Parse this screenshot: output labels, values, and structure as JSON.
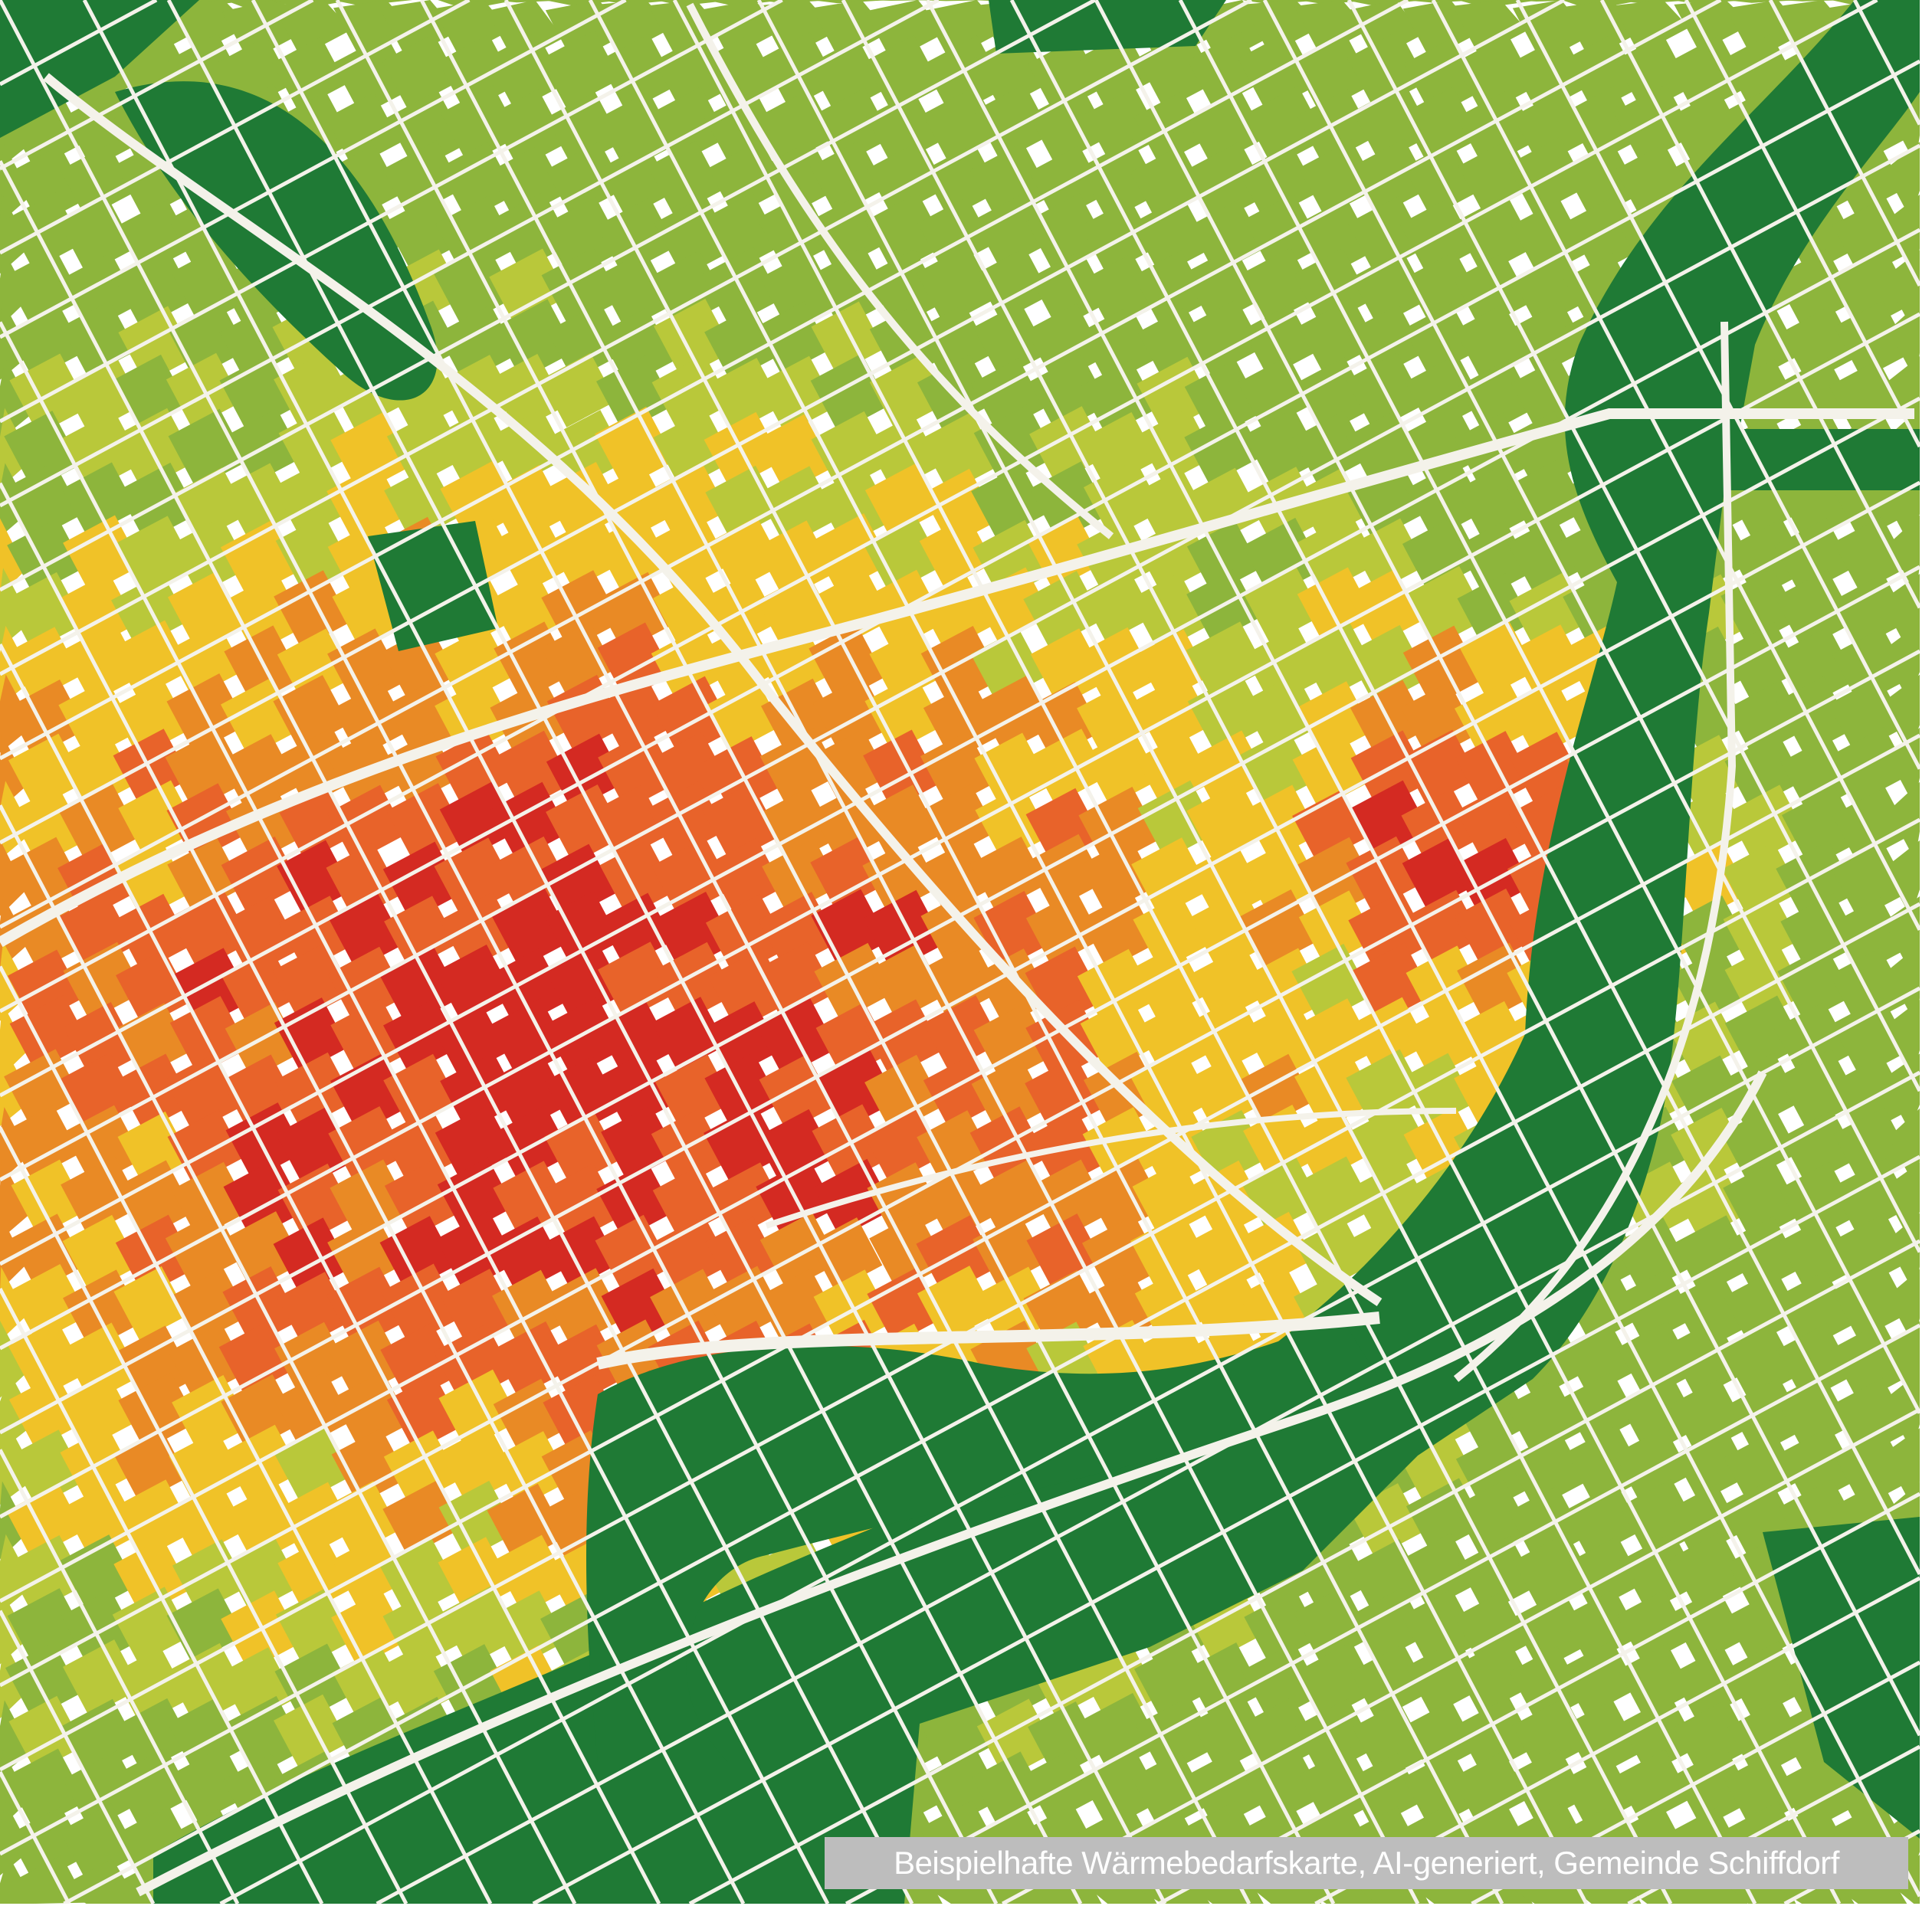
{
  "caption": "Beispielhafte Wärmebedarfskarte, AI-generiert, Gemeinde Schiffdorf",
  "map": {
    "type": "heat demand map",
    "colors": {
      "very_high": "#d42a22",
      "high": "#e8632a",
      "medium_high": "#e98a25",
      "medium": "#f0c228",
      "low": "#b9c83a",
      "very_low": "#8db53c",
      "green_space": "#1f7a35",
      "roads": "#f4f2ea"
    }
  }
}
